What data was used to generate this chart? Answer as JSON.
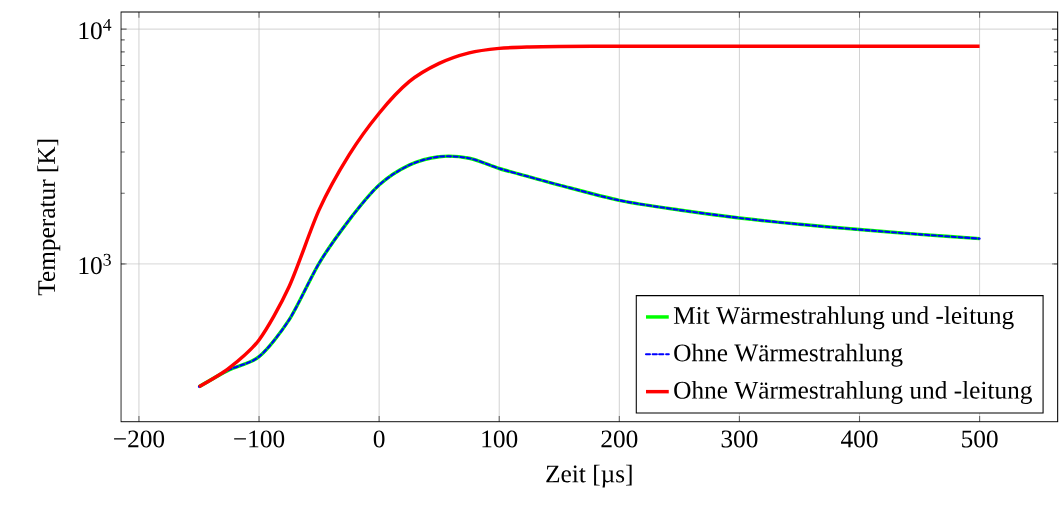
{
  "chart_data": {
    "type": "line",
    "xlabel": "Zeit [µs]",
    "ylabel": "Temperatur [K]",
    "log": "y",
    "xlim": [
      -215,
      565
    ],
    "ylim": [
      213,
      11830
    ],
    "xticks": [
      {
        "value": -200,
        "label": "−200"
      },
      {
        "value": -100,
        "label": "−100"
      },
      0,
      100,
      200,
      300,
      400,
      500
    ],
    "yticks": [
      {
        "value": 1000,
        "label": "10$^{3}$"
      },
      {
        "value": 10000,
        "label": "10$^{4}$"
      }
    ],
    "grid": true,
    "legend": "bottom right",
    "marker": "none",
    "x": [
      -150,
      -125,
      -100,
      -75,
      -50,
      -25,
      0,
      25,
      50,
      75,
      100,
      125,
      150,
      200,
      250,
      300,
      350,
      400,
      450,
      500
    ],
    "series": [
      {
        "name": "Mit Wärmestrahlung und -leitung",
        "color": "#00ff00",
        "line_style": "solid",
        "values": [
          300,
          354,
          403,
          578,
          1007,
          1538,
          2168,
          2636,
          2864,
          2820,
          2550,
          2350,
          2168,
          1866,
          1698,
          1570,
          1475,
          1401,
          1337,
          1282
        ]
      },
      {
        "name": "Ohne Wärmestrahlung",
        "color": "#0000ff",
        "line_style": "dashed",
        "values": [
          300,
          354,
          403,
          578,
          1007,
          1538,
          2168,
          2636,
          2864,
          2820,
          2550,
          2350,
          2168,
          1866,
          1698,
          1570,
          1475,
          1401,
          1337,
          1282
        ]
      },
      {
        "name": "Ohne Wärmestrahlung und -leitung",
        "color": "#ff0000",
        "line_style": "solid",
        "values": [
          300,
          360,
          475,
          800,
          1700,
          2913,
          4384,
          5972,
          7145,
          7925,
          8280,
          8400,
          8440,
          8450,
          8450,
          8450,
          8450,
          8450,
          8450,
          8450
        ]
      }
    ]
  }
}
